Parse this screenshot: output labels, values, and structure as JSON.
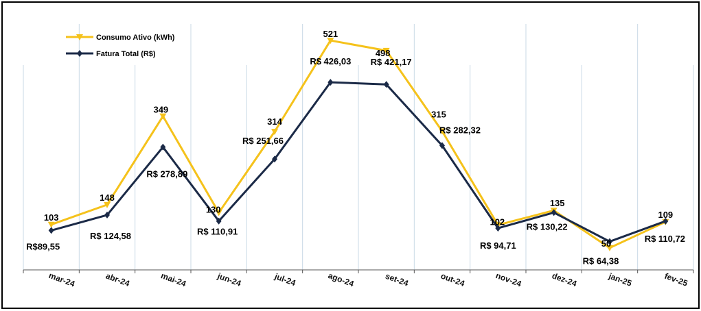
{
  "chart_data": {
    "type": "line",
    "categories": [
      "mar-24",
      "abr-24",
      "mai-24",
      "jun-24",
      "jul-24",
      "ago-24",
      "set-24",
      "out-24",
      "nov-24",
      "dez-24",
      "jan-25",
      "fev-25"
    ],
    "series": [
      {
        "name": "Consumo Ativo (kWh)",
        "color": "#f5c21b",
        "values": [
          103,
          148,
          349,
          130,
          314,
          521,
          498,
          315,
          102,
          135,
          50,
          109
        ],
        "labels": [
          "103",
          "148",
          "349",
          "130",
          "314",
          "521",
          "498",
          "315",
          "102",
          "135",
          "50",
          "109"
        ]
      },
      {
        "name": "Fatura Total (R$)",
        "color": "#1b2a47",
        "values": [
          89.55,
          124.58,
          278.89,
          110.91,
          251.66,
          426.03,
          421.17,
          282.32,
          94.71,
          130.22,
          64.38,
          110.72
        ],
        "labels": [
          "R$89,55",
          "R$ 124,58",
          "R$ 278,89",
          "R$ 110,91",
          "R$ 251,66",
          "R$ 426,03",
          "R$ 421,17",
          "R$ 282,32",
          "R$ 94,71",
          "R$ 130,22",
          "R$ 64,38",
          "R$ 110,72"
        ]
      }
    ],
    "grid": true,
    "legend_position": "top-left"
  }
}
